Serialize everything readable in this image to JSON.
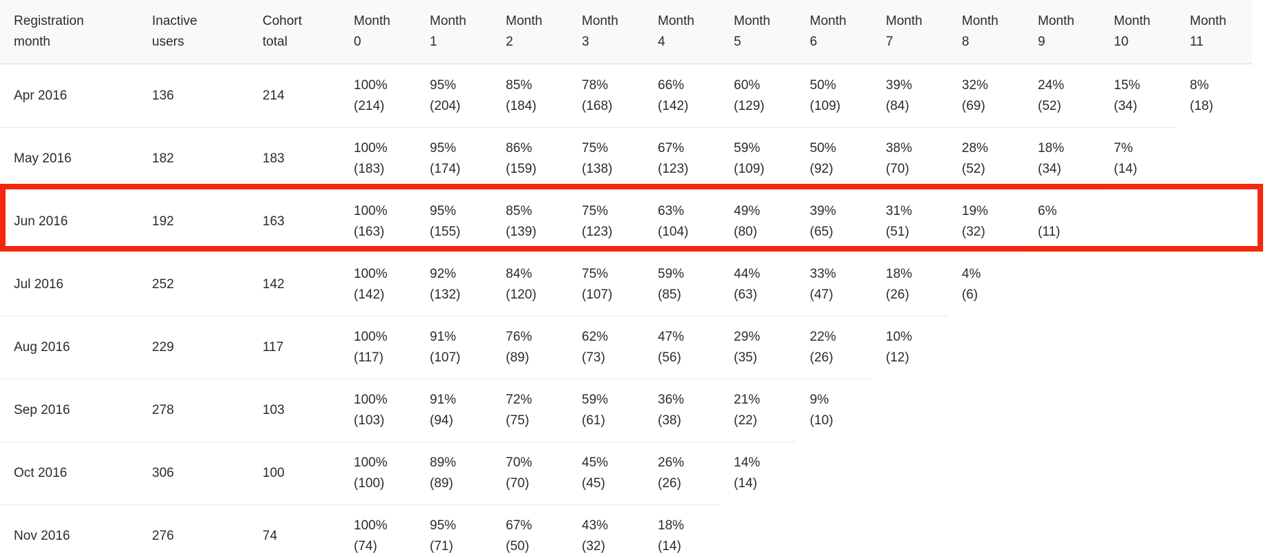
{
  "styles": {
    "header_bg": "#f9f9f9",
    "header_border": "#dcdcdc",
    "row_border": "#e8e8e8",
    "text_color": "#2b2b2b",
    "highlight_red": "#f4270f"
  },
  "chart_data": {
    "type": "table",
    "title": "Cohort retention table",
    "columns": [
      "Registration month",
      "Inactive users",
      "Cohort total",
      "Month 0",
      "Month 1",
      "Month 2",
      "Month 3",
      "Month 4",
      "Month 5",
      "Month 6",
      "Month 7",
      "Month 8",
      "Month 9",
      "Month 10",
      "Month 11"
    ],
    "highlight": {
      "row": "Jun 2016",
      "color": "#f4270f"
    },
    "rows": [
      {
        "registration_month": "Apr 2016",
        "inactive_users": "136",
        "cohort_total": "214",
        "highlighted": false,
        "retention": [
          {
            "pct": "100%",
            "count": "(214)"
          },
          {
            "pct": "95%",
            "count": "(204)"
          },
          {
            "pct": "85%",
            "count": "(184)"
          },
          {
            "pct": "78%",
            "count": "(168)"
          },
          {
            "pct": "66%",
            "count": "(142)"
          },
          {
            "pct": "60%",
            "count": "(129)"
          },
          {
            "pct": "50%",
            "count": "(109)"
          },
          {
            "pct": "39%",
            "count": "(84)"
          },
          {
            "pct": "32%",
            "count": "(69)"
          },
          {
            "pct": "24%",
            "count": "(52)"
          },
          {
            "pct": "15%",
            "count": "(34)"
          },
          {
            "pct": "8%",
            "count": "(18)"
          }
        ]
      },
      {
        "registration_month": "May 2016",
        "inactive_users": "182",
        "cohort_total": "183",
        "highlighted": false,
        "retention": [
          {
            "pct": "100%",
            "count": "(183)"
          },
          {
            "pct": "95%",
            "count": "(174)"
          },
          {
            "pct": "86%",
            "count": "(159)"
          },
          {
            "pct": "75%",
            "count": "(138)"
          },
          {
            "pct": "67%",
            "count": "(123)"
          },
          {
            "pct": "59%",
            "count": "(109)"
          },
          {
            "pct": "50%",
            "count": "(92)"
          },
          {
            "pct": "38%",
            "count": "(70)"
          },
          {
            "pct": "28%",
            "count": "(52)"
          },
          {
            "pct": "18%",
            "count": "(34)"
          },
          {
            "pct": "7%",
            "count": "(14)"
          }
        ]
      },
      {
        "registration_month": "Jun 2016",
        "inactive_users": "192",
        "cohort_total": "163",
        "highlighted": true,
        "retention": [
          {
            "pct": "100%",
            "count": "(163)"
          },
          {
            "pct": "95%",
            "count": "(155)"
          },
          {
            "pct": "85%",
            "count": "(139)"
          },
          {
            "pct": "75%",
            "count": "(123)"
          },
          {
            "pct": "63%",
            "count": "(104)"
          },
          {
            "pct": "49%",
            "count": "(80)"
          },
          {
            "pct": "39%",
            "count": "(65)"
          },
          {
            "pct": "31%",
            "count": "(51)"
          },
          {
            "pct": "19%",
            "count": "(32)"
          },
          {
            "pct": "6%",
            "count": "(11)"
          }
        ]
      },
      {
        "registration_month": "Jul 2016",
        "inactive_users": "252",
        "cohort_total": "142",
        "highlighted": false,
        "retention": [
          {
            "pct": "100%",
            "count": "(142)"
          },
          {
            "pct": "92%",
            "count": "(132)"
          },
          {
            "pct": "84%",
            "count": "(120)"
          },
          {
            "pct": "75%",
            "count": "(107)"
          },
          {
            "pct": "59%",
            "count": "(85)"
          },
          {
            "pct": "44%",
            "count": "(63)"
          },
          {
            "pct": "33%",
            "count": "(47)"
          },
          {
            "pct": "18%",
            "count": "(26)"
          },
          {
            "pct": "4%",
            "count": "(6)"
          }
        ]
      },
      {
        "registration_month": "Aug 2016",
        "inactive_users": "229",
        "cohort_total": "117",
        "highlighted": false,
        "retention": [
          {
            "pct": "100%",
            "count": "(117)"
          },
          {
            "pct": "91%",
            "count": "(107)"
          },
          {
            "pct": "76%",
            "count": "(89)"
          },
          {
            "pct": "62%",
            "count": "(73)"
          },
          {
            "pct": "47%",
            "count": "(56)"
          },
          {
            "pct": "29%",
            "count": "(35)"
          },
          {
            "pct": "22%",
            "count": "(26)"
          },
          {
            "pct": "10%",
            "count": "(12)"
          }
        ]
      },
      {
        "registration_month": "Sep 2016",
        "inactive_users": "278",
        "cohort_total": "103",
        "highlighted": false,
        "retention": [
          {
            "pct": "100%",
            "count": "(103)"
          },
          {
            "pct": "91%",
            "count": "(94)"
          },
          {
            "pct": "72%",
            "count": "(75)"
          },
          {
            "pct": "59%",
            "count": "(61)"
          },
          {
            "pct": "36%",
            "count": "(38)"
          },
          {
            "pct": "21%",
            "count": "(22)"
          },
          {
            "pct": "9%",
            "count": "(10)"
          }
        ]
      },
      {
        "registration_month": "Oct 2016",
        "inactive_users": "306",
        "cohort_total": "100",
        "highlighted": false,
        "retention": [
          {
            "pct": "100%",
            "count": "(100)"
          },
          {
            "pct": "89%",
            "count": "(89)"
          },
          {
            "pct": "70%",
            "count": "(70)"
          },
          {
            "pct": "45%",
            "count": "(45)"
          },
          {
            "pct": "26%",
            "count": "(26)"
          },
          {
            "pct": "14%",
            "count": "(14)"
          }
        ]
      },
      {
        "registration_month": "Nov 2016",
        "inactive_users": "276",
        "cohort_total": "74",
        "highlighted": false,
        "retention": [
          {
            "pct": "100%",
            "count": "(74)"
          },
          {
            "pct": "95%",
            "count": "(71)"
          },
          {
            "pct": "67%",
            "count": "(50)"
          },
          {
            "pct": "43%",
            "count": "(32)"
          },
          {
            "pct": "18%",
            "count": "(14)"
          }
        ]
      }
    ]
  }
}
